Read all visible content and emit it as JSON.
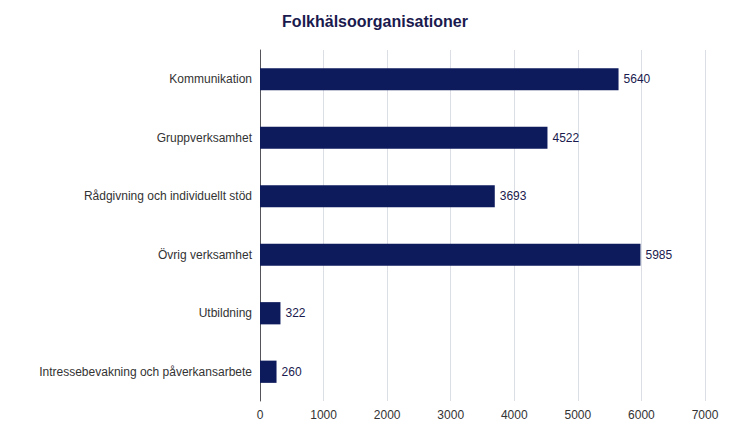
{
  "chart_data": {
    "type": "bar",
    "orientation": "horizontal",
    "title": "Folkhälsoorganisationer",
    "categories": [
      "Kommunikation",
      "Gruppverksamhet",
      "Rådgivning och individuellt stöd",
      "Övrig verksamhet",
      "Utbildning",
      "Intressebevakning och påverkansarbete"
    ],
    "values": [
      5640,
      4522,
      3693,
      5985,
      322,
      260
    ],
    "color": "#0d1a5c",
    "xlim": [
      0,
      7000
    ],
    "xticks": [
      0,
      1000,
      2000,
      3000,
      4000,
      5000,
      6000,
      7000
    ],
    "grid": true,
    "data_labels": true
  }
}
